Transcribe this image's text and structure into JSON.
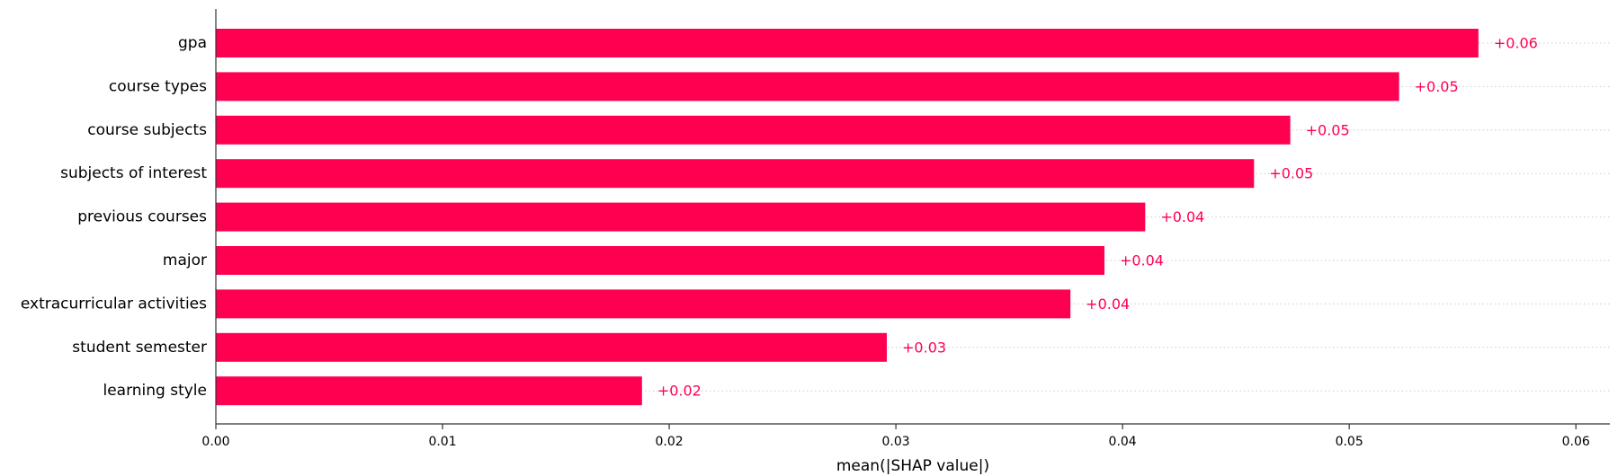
{
  "chart_data": {
    "type": "bar",
    "orientation": "horizontal",
    "categories": [
      "gpa",
      "course types",
      "course subjects",
      "subjects of interest",
      "previous courses",
      "major",
      "extracurricular activities",
      "student semester",
      "learning style"
    ],
    "values": [
      0.0557,
      0.0522,
      0.0474,
      0.0458,
      0.041,
      0.0392,
      0.0377,
      0.0296,
      0.0188
    ],
    "value_labels": [
      "+0.06",
      "+0.05",
      "+0.05",
      "+0.05",
      "+0.04",
      "+0.04",
      "+0.04",
      "+0.03",
      "+0.02"
    ],
    "xticks": [
      0.0,
      0.01,
      0.02,
      0.03,
      0.04,
      0.05,
      0.06
    ],
    "xtick_labels": [
      "0.00",
      "0.01",
      "0.02",
      "0.03",
      "0.04",
      "0.05",
      "0.06"
    ],
    "xlim": [
      0,
      0.0615
    ],
    "xlabel": "mean(|SHAP value|)",
    "grid": "dotted horizontal guide per bar",
    "colors": {
      "bar": "#ff0051",
      "value_label": "#ff0051",
      "axis": "#333333",
      "guide": "#cccccc"
    }
  }
}
